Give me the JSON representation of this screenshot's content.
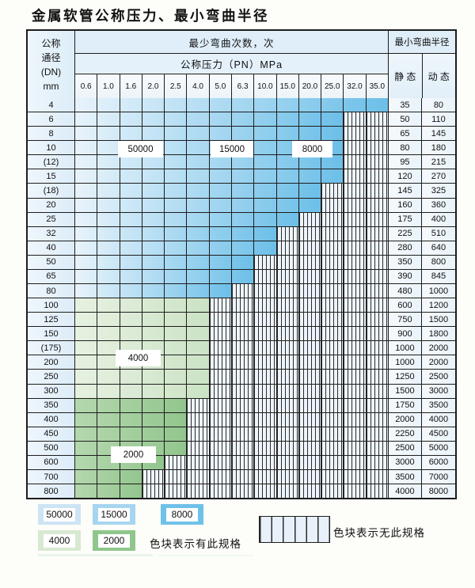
{
  "title": "金属软管公称压力、最小弯曲半径",
  "table": {
    "header": {
      "dn_lines": [
        "公称",
        "通径",
        "(DN)",
        "mm"
      ],
      "bend_cycles": "最少弯曲次数，次",
      "pressure": "公称压力（PN）MPa",
      "min_radius": "最小弯曲半径",
      "static": "静 态",
      "dynamic": "动 态",
      "pressure_cols": [
        "0.6",
        "1.0",
        "1.6",
        "2.0",
        "2.5",
        "4.0",
        "5.0",
        "6.3",
        "10.0",
        "15.0",
        "20.0",
        "25.0",
        "32.0",
        "35.0"
      ]
    },
    "rows": [
      {
        "dn": "4",
        "colored": 14,
        "band": "blue",
        "static": "35",
        "dynamic": "80"
      },
      {
        "dn": "6",
        "colored": 12,
        "band": "blue",
        "static": "50",
        "dynamic": "110"
      },
      {
        "dn": "8",
        "colored": 12,
        "band": "blue",
        "static": "65",
        "dynamic": "145"
      },
      {
        "dn": "10",
        "colored": 12,
        "band": "blue",
        "static": "80",
        "dynamic": "180"
      },
      {
        "dn": "(12)",
        "colored": 12,
        "band": "blue",
        "static": "95",
        "dynamic": "215"
      },
      {
        "dn": "15",
        "colored": 12,
        "band": "blue",
        "static": "120",
        "dynamic": "270"
      },
      {
        "dn": "(18)",
        "colored": 11,
        "band": "blue",
        "static": "145",
        "dynamic": "325"
      },
      {
        "dn": "20",
        "colored": 11,
        "band": "blue",
        "static": "160",
        "dynamic": "360"
      },
      {
        "dn": "25",
        "colored": 10,
        "band": "blue",
        "static": "175",
        "dynamic": "400"
      },
      {
        "dn": "32",
        "colored": 9,
        "band": "blue",
        "static": "225",
        "dynamic": "510"
      },
      {
        "dn": "40",
        "colored": 9,
        "band": "blue",
        "static": "280",
        "dynamic": "640"
      },
      {
        "dn": "50",
        "colored": 8,
        "band": "blue",
        "static": "350",
        "dynamic": "800"
      },
      {
        "dn": "65",
        "colored": 8,
        "band": "blue",
        "static": "390",
        "dynamic": "845"
      },
      {
        "dn": "80",
        "colored": 7,
        "band": "blue",
        "static": "480",
        "dynamic": "1000"
      },
      {
        "dn": "100",
        "colored": 6,
        "band": "g4",
        "static": "600",
        "dynamic": "1200"
      },
      {
        "dn": "125",
        "colored": 6,
        "band": "g4",
        "static": "750",
        "dynamic": "1500"
      },
      {
        "dn": "150",
        "colored": 6,
        "band": "g4",
        "static": "900",
        "dynamic": "1800"
      },
      {
        "dn": "(175)",
        "colored": 6,
        "band": "g4",
        "static": "1000",
        "dynamic": "2000"
      },
      {
        "dn": "200",
        "colored": 6,
        "band": "g4",
        "static": "1000",
        "dynamic": "2000"
      },
      {
        "dn": "250",
        "colored": 6,
        "band": "g4",
        "static": "1250",
        "dynamic": "2500"
      },
      {
        "dn": "300",
        "colored": 6,
        "band": "g4",
        "static": "1500",
        "dynamic": "3000"
      },
      {
        "dn": "350",
        "colored": 5,
        "band": "g2",
        "static": "1750",
        "dynamic": "3500"
      },
      {
        "dn": "400",
        "colored": 5,
        "band": "g2",
        "static": "2000",
        "dynamic": "4000"
      },
      {
        "dn": "450",
        "colored": 5,
        "band": "g2",
        "static": "2250",
        "dynamic": "4500"
      },
      {
        "dn": "500",
        "colored": 5,
        "band": "g2",
        "static": "2500",
        "dynamic": "5000"
      },
      {
        "dn": "600",
        "colored": 4,
        "band": "g2",
        "static": "3000",
        "dynamic": "6000"
      },
      {
        "dn": "700",
        "colored": 3,
        "band": "g2",
        "static": "3500",
        "dynamic": "7000"
      },
      {
        "dn": "800",
        "colored": 3,
        "band": "g2",
        "static": "4000",
        "dynamic": "8000"
      }
    ]
  },
  "overlay_labels": [
    {
      "text": "50000"
    },
    {
      "text": "15000"
    },
    {
      "text": "8000"
    },
    {
      "text": "4000"
    },
    {
      "text": "2000"
    }
  ],
  "legend": {
    "row1": [
      {
        "label": "50000",
        "color": "#cde4f5"
      },
      {
        "label": "15000",
        "color": "#a6d5f0"
      },
      {
        "label": "8000",
        "color": "#70c1e8"
      }
    ],
    "row2": [
      {
        "label": "4000",
        "color": "#d8e9d2"
      },
      {
        "label": "2000",
        "color": "#90c68c"
      }
    ],
    "has_spec_text": "色块表示有此规格",
    "no_spec_text": "色块表示无此规格"
  },
  "colors": {
    "ramps": {
      "blue": [
        "#e8f3fb",
        "#6cbfe8"
      ],
      "g4": [
        "#e7f1e1",
        "#cbe3c5"
      ],
      "g2": [
        "#b5d7af",
        "#92c68d"
      ]
    },
    "grid_line": "#1d1d1d",
    "hatch_bg": "#edf4fb"
  }
}
